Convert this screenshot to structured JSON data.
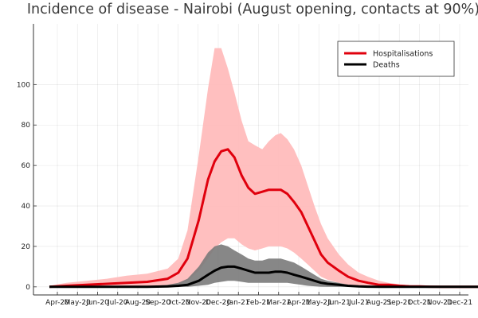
{
  "chart_data": {
    "type": "line",
    "title": "Incidence of disease - Nairobi (August opening, contacts at 90%)",
    "xlabel": "",
    "ylabel": "",
    "x_ticks": [
      "Apr-20",
      "May-20",
      "Jun-20",
      "Jul-20",
      "Aug-20",
      "Sep-20",
      "Oct-20",
      "Nov-20",
      "Dec-20",
      "Jan-21",
      "Feb-21",
      "Mar-21",
      "Apr-21",
      "May-21",
      "Jun-21",
      "Jul-21",
      "Aug-21",
      "Sep-21",
      "Oct-21",
      "Nov-21",
      "Dec-21"
    ],
    "y_ticks": [
      0,
      20,
      40,
      60,
      80,
      100
    ],
    "ylim": [
      -4,
      130
    ],
    "grid": true,
    "legend_position": "top-right",
    "x": [
      "2020-03-20",
      "2020-04-15",
      "2020-05-15",
      "2020-06-15",
      "2020-07-15",
      "2020-08-15",
      "2020-09-15",
      "2020-10-01",
      "2020-10-15",
      "2020-11-01",
      "2020-11-15",
      "2020-11-25",
      "2020-12-05",
      "2020-12-15",
      "2020-12-25",
      "2021-01-05",
      "2021-01-15",
      "2021-01-25",
      "2021-02-05",
      "2021-02-15",
      "2021-02-25",
      "2021-03-05",
      "2021-03-15",
      "2021-03-25",
      "2021-04-05",
      "2021-04-15",
      "2021-04-25",
      "2021-05-05",
      "2021-05-15",
      "2021-06-01",
      "2021-06-15",
      "2021-07-01",
      "2021-07-15",
      "2021-08-01",
      "2021-08-15",
      "2021-09-01",
      "2021-09-15",
      "2021-10-01",
      "2021-10-15",
      "2021-11-01",
      "2021-11-15",
      "2021-12-01",
      "2021-12-15",
      "2022-01-01"
    ],
    "series": [
      {
        "name": "Hospitalisations",
        "color": "#e0000d",
        "values": [
          0,
          0.5,
          1,
          1.5,
          2,
          2.5,
          4,
          7,
          14,
          33,
          53,
          62,
          67,
          68,
          64,
          55,
          49,
          46,
          47,
          48,
          48,
          48,
          46,
          42,
          37,
          30,
          23,
          16,
          12,
          8,
          5,
          3,
          2,
          1,
          1,
          0.5,
          0.3,
          0.2,
          0.1,
          0,
          0,
          0,
          0,
          0
        ],
        "upper": [
          0.5,
          2,
          3,
          4,
          5.5,
          6.5,
          9,
          14,
          28,
          65,
          98,
          118,
          118,
          108,
          96,
          82,
          72,
          70,
          68,
          72,
          75,
          76,
          73,
          68,
          60,
          50,
          40,
          31,
          24,
          16,
          11,
          7,
          5,
          3,
          2,
          1.2,
          0.8,
          0.5,
          0.3,
          0.2,
          0.1,
          0.1,
          0,
          0
        ],
        "lower": [
          0,
          0,
          0,
          0,
          0,
          0,
          0,
          1,
          3,
          8,
          14,
          19,
          22,
          24,
          24,
          21,
          19,
          18,
          19,
          20,
          20,
          20,
          19,
          17,
          14,
          11,
          8,
          5,
          3.5,
          2,
          1,
          0.4,
          0.2,
          0,
          0,
          0,
          0,
          0,
          0,
          0,
          0,
          0,
          0,
          0
        ]
      },
      {
        "name": "Deaths",
        "color": "#000000",
        "values": [
          0,
          0,
          0,
          0,
          0,
          0,
          0.2,
          0.5,
          1,
          3,
          6,
          8,
          9.5,
          10,
          10,
          9,
          8,
          7,
          7,
          7,
          7.5,
          7.5,
          7,
          6,
          5,
          4,
          3,
          2,
          1.5,
          1,
          0.5,
          0.2,
          0.1,
          0,
          0,
          0,
          0,
          0,
          0,
          0,
          0,
          0,
          0,
          0
        ],
        "upper": [
          0,
          0,
          0,
          0,
          0.2,
          0.3,
          1,
          2,
          4,
          10,
          17,
          20,
          21,
          20,
          18,
          16,
          14,
          13,
          13,
          14,
          14,
          14,
          13,
          12,
          10,
          8,
          6,
          4,
          3,
          2,
          1,
          0.5,
          0.3,
          0.1,
          0,
          0,
          0,
          0,
          0,
          0,
          0,
          0,
          0,
          0
        ],
        "lower": [
          0,
          0,
          0,
          0,
          0,
          0,
          0,
          0,
          0,
          0.5,
          1,
          2,
          2.5,
          3,
          3,
          2.5,
          2,
          2,
          2,
          2,
          2,
          2,
          2,
          1.5,
          1,
          0.5,
          0.3,
          0.1,
          0,
          0,
          0,
          0,
          0,
          0,
          0,
          0,
          0,
          0,
          0,
          0,
          0,
          0,
          0,
          0
        ]
      }
    ],
    "band_colors": {
      "Hospitalisations": "#ffbcbc",
      "Deaths": "#7a7a7a"
    }
  }
}
